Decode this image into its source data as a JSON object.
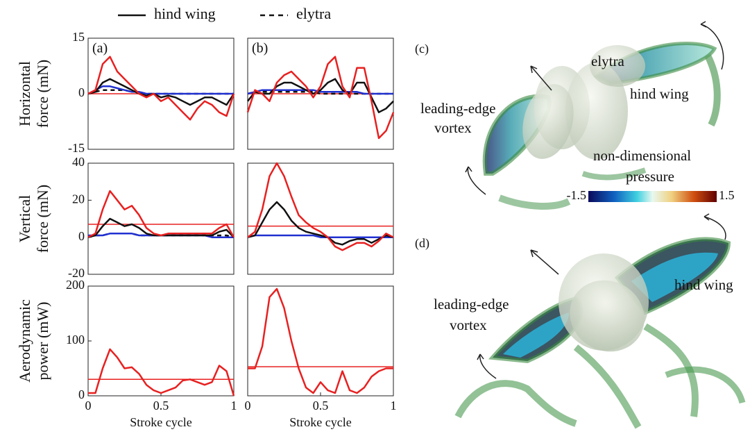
{
  "legend": {
    "items": [
      {
        "label": "hind wing",
        "dash": "solid"
      },
      {
        "label": "elytra",
        "dash": "dashed"
      }
    ]
  },
  "chart_data": [
    {
      "type": "line",
      "panel": "(a)",
      "ylabel": [
        "Horizontal",
        "force (mN)"
      ],
      "ylim": [
        -15,
        15
      ],
      "yticks": [
        -15,
        0,
        15
      ],
      "xlim": [
        0,
        1
      ],
      "x": [
        0,
        0.05,
        0.1,
        0.15,
        0.2,
        0.25,
        0.3,
        0.35,
        0.4,
        0.45,
        0.5,
        0.55,
        0.6,
        0.65,
        0.7,
        0.75,
        0.8,
        0.85,
        0.9,
        0.95,
        1
      ],
      "hlines": [
        {
          "value": 0,
          "color": "#e82020"
        }
      ],
      "series": [
        {
          "color": "#e82020",
          "dash": "solid",
          "values": [
            0,
            1,
            8,
            10,
            6,
            4,
            2,
            0,
            -1,
            0,
            -2,
            -1,
            -3,
            -5,
            -7,
            -4,
            -2,
            -3,
            -5,
            -6,
            0
          ]
        },
        {
          "color": "#111111",
          "dash": "solid",
          "values": [
            0,
            0.5,
            3,
            4,
            3,
            2,
            1,
            0,
            -0.5,
            0,
            -1,
            -0.5,
            -1,
            -2,
            -3,
            -2,
            -1,
            -1,
            -2,
            -3,
            0
          ]
        },
        {
          "color": "#2030d0",
          "dash": "solid",
          "values": [
            0,
            1,
            2,
            2,
            1.5,
            1,
            0.5,
            0.5,
            0,
            0,
            0,
            0,
            0,
            0,
            0,
            0,
            0,
            0,
            0,
            0,
            0
          ]
        },
        {
          "color": "#111111",
          "dash": "dashed",
          "values": [
            0,
            0.5,
            1,
            1,
            1,
            1,
            0.5,
            0.5,
            0,
            0,
            0,
            0,
            0,
            0,
            0,
            0,
            0,
            0,
            0,
            0,
            0
          ]
        }
      ]
    },
    {
      "type": "line",
      "panel": "(b)",
      "ylim": [
        -15,
        15
      ],
      "xlim": [
        0,
        1
      ],
      "x": [
        0,
        0.05,
        0.1,
        0.15,
        0.2,
        0.25,
        0.3,
        0.35,
        0.4,
        0.45,
        0.5,
        0.55,
        0.6,
        0.65,
        0.7,
        0.75,
        0.8,
        0.85,
        0.9,
        0.95,
        1
      ],
      "hlines": [
        {
          "value": 0,
          "color": "#e82020"
        }
      ],
      "series": [
        {
          "color": "#e82020",
          "dash": "solid",
          "values": [
            -5,
            1,
            0,
            -2,
            3,
            5,
            6,
            4,
            2,
            -1,
            2,
            8,
            10,
            2,
            -1,
            7,
            7,
            -2,
            -12,
            -10,
            -5
          ]
        },
        {
          "color": "#111111",
          "dash": "solid",
          "values": [
            -2,
            0.5,
            0,
            0,
            2,
            3,
            3,
            2,
            1,
            0,
            1,
            3,
            4,
            1,
            0,
            3,
            3,
            -1,
            -5,
            -4,
            -2
          ]
        },
        {
          "color": "#2030d0",
          "dash": "solid",
          "values": [
            0,
            0.5,
            1,
            1,
            1,
            1,
            1,
            1,
            1,
            1,
            0.5,
            0.5,
            0.5,
            0.5,
            0.5,
            0.5,
            0,
            0,
            0,
            0,
            0
          ]
        },
        {
          "color": "#111111",
          "dash": "dashed",
          "values": [
            0,
            0.5,
            0.5,
            0.5,
            0.5,
            0.5,
            0.5,
            0.5,
            0.5,
            0.5,
            0,
            0,
            0,
            0,
            0,
            0,
            0,
            0,
            0,
            0,
            0
          ]
        }
      ]
    },
    {
      "type": "line",
      "ylabel": [
        "Vertical",
        "force (mN)"
      ],
      "ylim": [
        -20,
        40
      ],
      "yticks": [
        -20,
        0,
        20,
        40
      ],
      "xlim": [
        0,
        1
      ],
      "x": [
        0,
        0.05,
        0.1,
        0.15,
        0.2,
        0.25,
        0.3,
        0.35,
        0.4,
        0.45,
        0.5,
        0.55,
        0.6,
        0.65,
        0.7,
        0.75,
        0.8,
        0.85,
        0.9,
        0.95,
        1
      ],
      "hlines": [
        {
          "value": 7,
          "color": "#e82020"
        }
      ],
      "series": [
        {
          "color": "#e82020",
          "dash": "solid",
          "values": [
            0,
            2,
            15,
            25,
            20,
            15,
            17,
            12,
            5,
            2,
            1,
            2,
            2,
            2,
            2,
            2,
            2,
            2,
            5,
            7,
            0
          ]
        },
        {
          "color": "#111111",
          "dash": "solid",
          "values": [
            0,
            1,
            6,
            10,
            8,
            6,
            7,
            5,
            2,
            1,
            1,
            1,
            1,
            1,
            1,
            1,
            1,
            1,
            3,
            4,
            0
          ]
        },
        {
          "color": "#2030d0",
          "dash": "solid",
          "values": [
            1,
            1,
            1,
            2,
            2,
            2,
            2,
            1,
            1,
            1,
            1,
            1,
            1,
            1,
            1,
            1,
            1,
            0,
            0,
            0,
            0
          ]
        },
        {
          "color": "#111111",
          "dash": "dashed",
          "values": [
            0,
            1,
            1,
            2,
            2,
            2,
            2,
            1,
            1,
            1,
            1,
            1,
            1,
            1,
            1,
            1,
            1,
            1,
            1,
            1,
            0
          ]
        }
      ]
    },
    {
      "type": "line",
      "ylim": [
        -20,
        40
      ],
      "xlim": [
        0,
        1
      ],
      "x": [
        0,
        0.05,
        0.1,
        0.15,
        0.2,
        0.25,
        0.3,
        0.35,
        0.4,
        0.45,
        0.5,
        0.55,
        0.6,
        0.65,
        0.7,
        0.75,
        0.8,
        0.85,
        0.9,
        0.95,
        1
      ],
      "hlines": [
        {
          "value": 6,
          "color": "#e82020"
        }
      ],
      "series": [
        {
          "color": "#e82020",
          "dash": "solid",
          "values": [
            0,
            3,
            15,
            33,
            40,
            33,
            22,
            12,
            8,
            5,
            3,
            0,
            -5,
            -7,
            -5,
            -3,
            -3,
            -5,
            -2,
            2,
            0
          ]
        },
        {
          "color": "#111111",
          "dash": "solid",
          "values": [
            0,
            1,
            8,
            15,
            19,
            15,
            9,
            5,
            3,
            2,
            1,
            0,
            -3,
            -4,
            -2,
            -1,
            -1,
            -3,
            -1,
            1,
            0
          ]
        },
        {
          "color": "#2030d0",
          "dash": "solid",
          "values": [
            0,
            1,
            1,
            1,
            1,
            1,
            1,
            1,
            1,
            1,
            0,
            0,
            0,
            0,
            0,
            0,
            0,
            0,
            0,
            0,
            0
          ]
        }
      ]
    },
    {
      "type": "line",
      "ylabel": [
        "Aerodynamic",
        "power (mW)"
      ],
      "xlabel": "Stroke cycle",
      "ylim": [
        0,
        200
      ],
      "yticks": [
        0,
        100,
        200
      ],
      "xlim": [
        0,
        1
      ],
      "xticks": [
        0,
        0.5,
        1
      ],
      "x": [
        0,
        0.05,
        0.1,
        0.15,
        0.2,
        0.25,
        0.3,
        0.35,
        0.4,
        0.45,
        0.5,
        0.55,
        0.6,
        0.65,
        0.7,
        0.75,
        0.8,
        0.85,
        0.9,
        0.95,
        1
      ],
      "hlines": [
        {
          "value": 30,
          "color": "#e82020"
        }
      ],
      "series": [
        {
          "color": "#e82020",
          "dash": "solid",
          "values": [
            5,
            5,
            50,
            85,
            70,
            50,
            52,
            40,
            20,
            10,
            5,
            10,
            15,
            28,
            30,
            25,
            20,
            25,
            55,
            45,
            0
          ]
        }
      ]
    },
    {
      "type": "line",
      "xlabel": "Stroke cycle",
      "ylim": [
        0,
        200
      ],
      "xlim": [
        0,
        1
      ],
      "xticks": [
        0,
        0.5,
        1
      ],
      "x": [
        0,
        0.05,
        0.1,
        0.15,
        0.2,
        0.25,
        0.3,
        0.35,
        0.4,
        0.45,
        0.5,
        0.55,
        0.6,
        0.65,
        0.7,
        0.75,
        0.8,
        0.85,
        0.9,
        0.95,
        1
      ],
      "hlines": [
        {
          "value": 53,
          "color": "#e82020"
        }
      ],
      "series": [
        {
          "color": "#e82020",
          "dash": "solid",
          "values": [
            50,
            50,
            90,
            180,
            195,
            160,
            100,
            50,
            15,
            5,
            25,
            10,
            5,
            45,
            10,
            5,
            15,
            35,
            45,
            50,
            50
          ]
        }
      ]
    }
  ],
  "illustrations": [
    {
      "label": "(c)",
      "annotations": [
        "elytra",
        "hind wing",
        "leading-edge",
        "vortex",
        "non-dimensional",
        "pressure"
      ],
      "colorbar": {
        "ticks": [
          -1.5,
          1.5
        ]
      }
    },
    {
      "label": "(d)",
      "annotations": [
        "hind wing",
        "leading-edge",
        "vortex"
      ]
    }
  ]
}
